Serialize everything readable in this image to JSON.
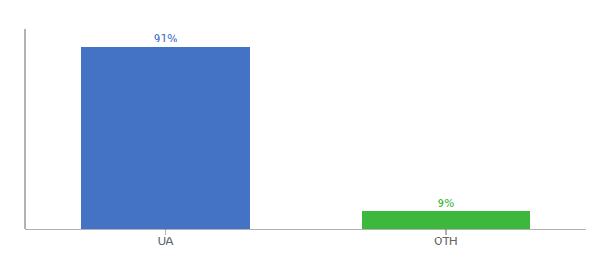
{
  "chart_data": {
    "type": "bar",
    "categories": [
      "UA",
      "OTH"
    ],
    "values": [
      91,
      9
    ],
    "value_labels": [
      "91%",
      "9%"
    ],
    "colors": [
      "#4472c4",
      "#3cb83c"
    ],
    "ylim": [
      0,
      100
    ],
    "data_labels": true,
    "tick_labels": "x"
  }
}
